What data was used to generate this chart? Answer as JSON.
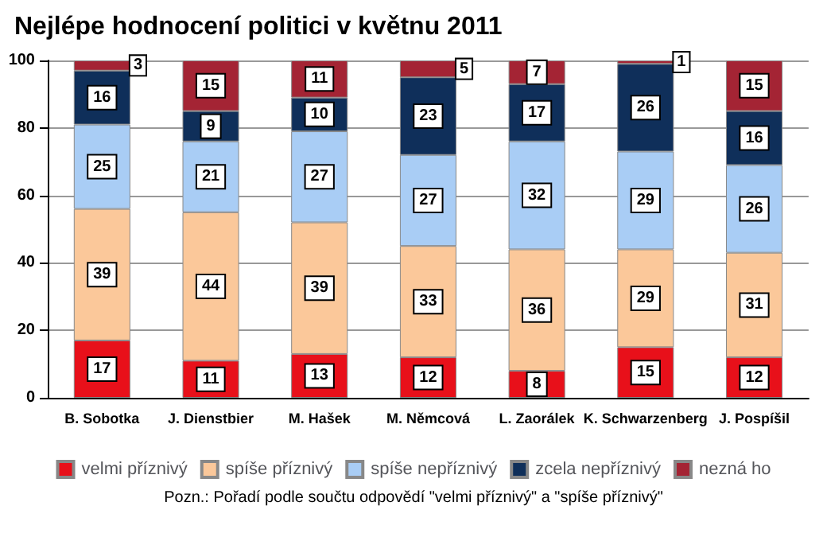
{
  "chart_data": {
    "type": "bar",
    "title": "Nejlépe hodnocení politici v květnu 2011",
    "categories": [
      "B. Sobotka",
      "J. Dienstbier",
      "M. Hašek",
      "M. Němcová",
      "L. Zaorálek",
      "K. Schwarzenberg",
      "J. Pospíšil"
    ],
    "stacked": true,
    "data_labels": true,
    "ylim": [
      0,
      100
    ],
    "yticks": [
      0,
      20,
      40,
      60,
      80,
      100
    ],
    "grid": "y",
    "legend": "bottom",
    "annotations": [
      "Pozn.: Pořadí podle součtu odpovědí \"velmi příznivý\" a \"spíše příznivý\""
    ],
    "series": [
      {
        "name": "velmi příznivý",
        "color": "#e8101a",
        "values": [
          17,
          11,
          13,
          12,
          8,
          15,
          12
        ]
      },
      {
        "name": "spíše příznivý",
        "color": "#fbc89a",
        "values": [
          39,
          44,
          39,
          33,
          36,
          29,
          31
        ]
      },
      {
        "name": "spíše nepříznivý",
        "color": "#a9cdf5",
        "values": [
          25,
          21,
          27,
          27,
          32,
          29,
          26
        ]
      },
      {
        "name": "zcela nepříznivý",
        "color": "#0f2f5a",
        "values": [
          16,
          9,
          10,
          23,
          17,
          26,
          16
        ]
      },
      {
        "name": "nezná ho",
        "color": "#a42434",
        "values": [
          3,
          15,
          11,
          5,
          7,
          1,
          15
        ]
      }
    ]
  }
}
